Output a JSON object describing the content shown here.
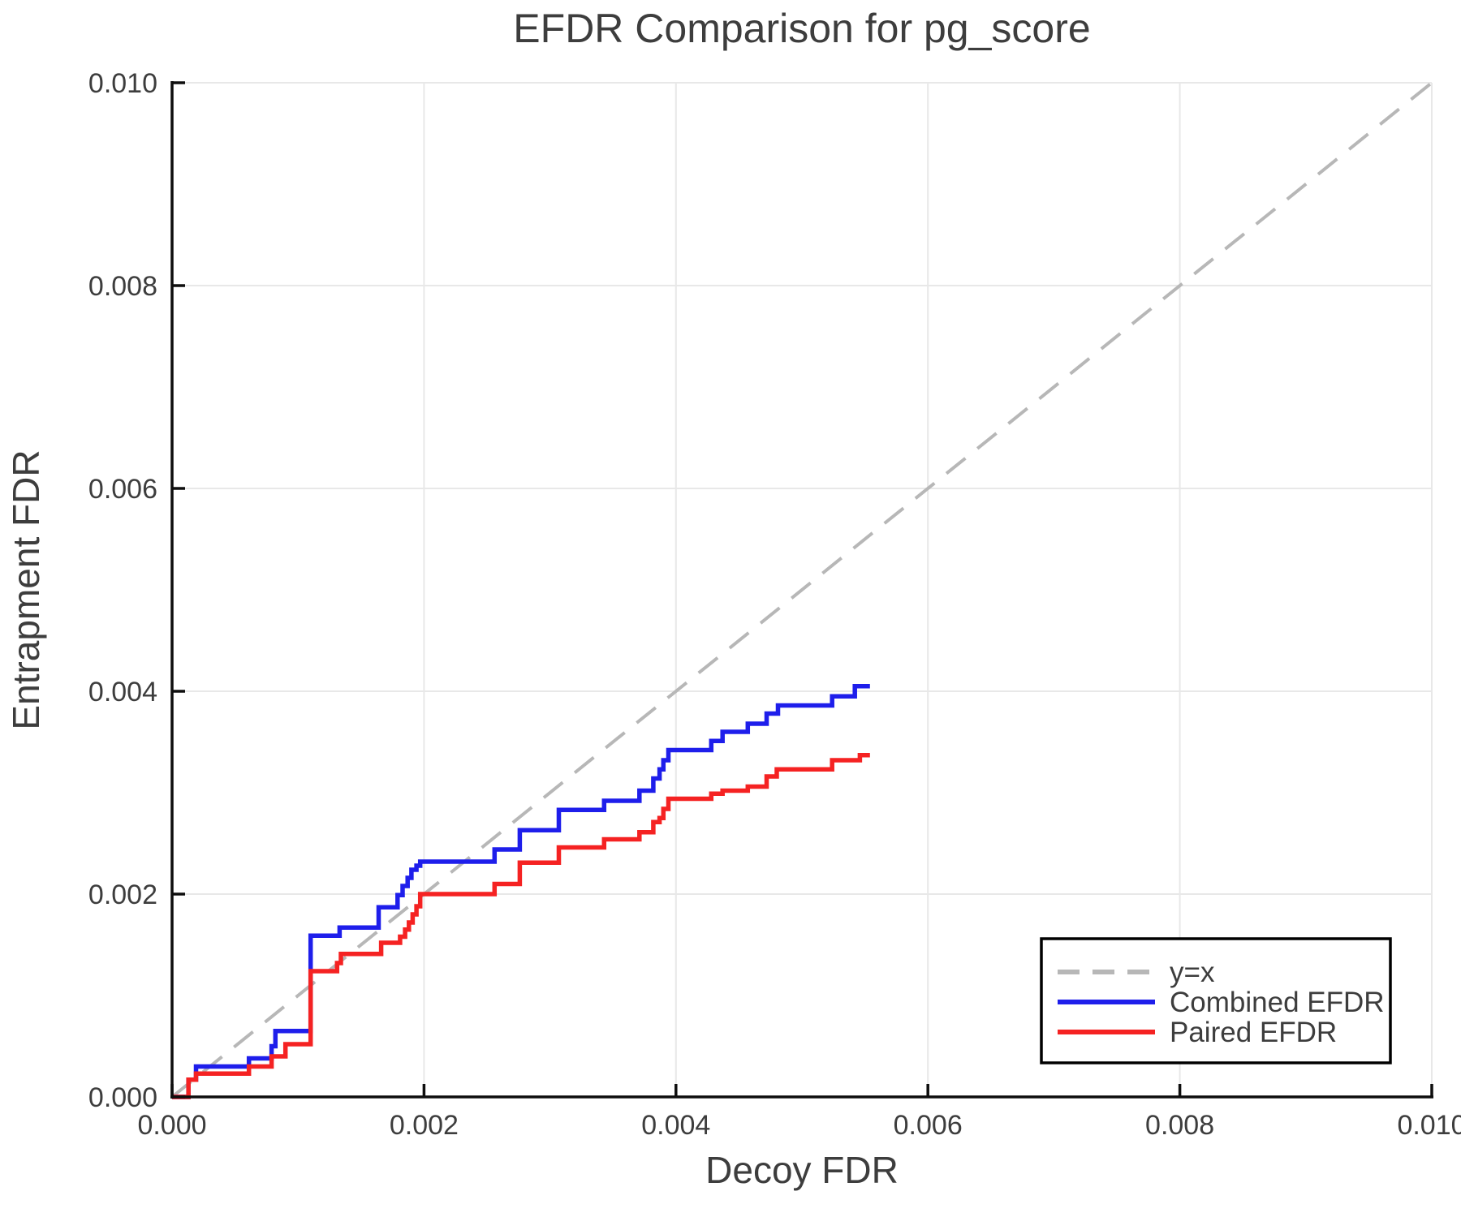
{
  "chart_data": {
    "type": "line",
    "title": "EFDR Comparison for pg_score",
    "xlabel": "Decoy FDR",
    "ylabel": "Entrapment FDR",
    "xlim": [
      0,
      0.01
    ],
    "ylim": [
      0,
      0.01
    ],
    "x_ticks": [
      0,
      0.002,
      0.004,
      0.006,
      0.008,
      0.01
    ],
    "y_ticks": [
      0,
      0.002,
      0.004,
      0.006,
      0.008,
      0.01
    ],
    "x_tick_labels": [
      "0.000",
      "0.002",
      "0.004",
      "0.006",
      "0.008",
      "0.010"
    ],
    "y_tick_labels": [
      "0.000",
      "0.002",
      "0.004",
      "0.006",
      "0.008",
      "0.010"
    ],
    "grid": true,
    "legend_position": "lower right",
    "series": [
      {
        "name": "y=x",
        "style": "dashed",
        "color": "#b7b7b7",
        "width": 4,
        "points": [
          [
            0,
            0
          ],
          [
            0.01,
            0.01
          ]
        ]
      },
      {
        "name": "Combined EFDR",
        "style": "step",
        "color": "#1e1eeb",
        "width": 5.5,
        "points": [
          [
            0,
            0
          ],
          [
            0.00013,
            0.00017
          ],
          [
            0.00019,
            0.0003
          ],
          [
            0.00061,
            0.00038
          ],
          [
            0.00079,
            0.0005
          ],
          [
            0.00082,
            0.00065
          ],
          [
            0.0011,
            0.00159
          ],
          [
            0.00133,
            0.00167
          ],
          [
            0.00164,
            0.00187
          ],
          [
            0.00179,
            0.00199
          ],
          [
            0.00183,
            0.00208
          ],
          [
            0.00187,
            0.00216
          ],
          [
            0.0019,
            0.00224
          ],
          [
            0.00194,
            0.00228
          ],
          [
            0.00197,
            0.00232
          ],
          [
            0.00256,
            0.00244
          ],
          [
            0.00276,
            0.00263
          ],
          [
            0.00307,
            0.00283
          ],
          [
            0.00343,
            0.00292
          ],
          [
            0.00371,
            0.00302
          ],
          [
            0.00382,
            0.00314
          ],
          [
            0.00387,
            0.00323
          ],
          [
            0.0039,
            0.00332
          ],
          [
            0.00394,
            0.00342
          ],
          [
            0.00428,
            0.00351
          ],
          [
            0.00437,
            0.0036
          ],
          [
            0.00457,
            0.00368
          ],
          [
            0.00472,
            0.00378
          ],
          [
            0.00481,
            0.00386
          ],
          [
            0.00524,
            0.00395
          ],
          [
            0.00542,
            0.00405
          ],
          [
            0.00554,
            0.00405
          ]
        ]
      },
      {
        "name": "Paired EFDR",
        "style": "step",
        "color": "#f52222",
        "width": 5.5,
        "points": [
          [
            0,
            0
          ],
          [
            0.00013,
            0.00017
          ],
          [
            0.00019,
            0.00023
          ],
          [
            0.00061,
            0.0003
          ],
          [
            0.00079,
            0.0004
          ],
          [
            0.0009,
            0.00052
          ],
          [
            0.0011,
            0.00124
          ],
          [
            0.00131,
            0.00132
          ],
          [
            0.00134,
            0.00141
          ],
          [
            0.00166,
            0.00152
          ],
          [
            0.00181,
            0.00158
          ],
          [
            0.00185,
            0.00165
          ],
          [
            0.00188,
            0.00172
          ],
          [
            0.00191,
            0.0018
          ],
          [
            0.00194,
            0.00188
          ],
          [
            0.00197,
            0.002
          ],
          [
            0.00256,
            0.0021
          ],
          [
            0.00276,
            0.00231
          ],
          [
            0.00307,
            0.00246
          ],
          [
            0.00343,
            0.00254
          ],
          [
            0.00371,
            0.00261
          ],
          [
            0.00382,
            0.00271
          ],
          [
            0.00387,
            0.00275
          ],
          [
            0.0039,
            0.00284
          ],
          [
            0.00394,
            0.00294
          ],
          [
            0.00428,
            0.00299
          ],
          [
            0.00437,
            0.00302
          ],
          [
            0.00457,
            0.00306
          ],
          [
            0.00472,
            0.00316
          ],
          [
            0.0048,
            0.00323
          ],
          [
            0.00524,
            0.00332
          ],
          [
            0.00546,
            0.00337
          ],
          [
            0.00554,
            0.00337
          ]
        ]
      }
    ]
  },
  "colors": {
    "grid": "#e8e8e8",
    "spine": "#0e0e0e",
    "text": "#3d3d3d",
    "background": "#ffffff"
  }
}
